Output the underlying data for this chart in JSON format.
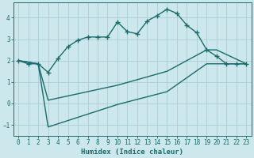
{
  "xlabel": "Humidex (Indice chaleur)",
  "bg_color": "#cde8ec",
  "grid_color": "#aacdd4",
  "line_color": "#1a6b6b",
  "xlim": [
    -0.5,
    23.5
  ],
  "ylim": [
    -1.5,
    4.7
  ],
  "yticks": [
    -1,
    0,
    1,
    2,
    3,
    4
  ],
  "xticks": [
    0,
    1,
    2,
    3,
    4,
    5,
    6,
    7,
    8,
    9,
    10,
    11,
    12,
    13,
    14,
    15,
    16,
    17,
    18,
    19,
    20,
    21,
    22,
    23
  ],
  "line1_x": [
    0,
    1,
    2,
    3,
    4,
    5,
    6,
    7,
    8,
    9,
    10,
    11,
    12,
    13,
    14,
    15,
    16,
    17,
    18,
    19,
    20,
    21,
    22,
    23
  ],
  "line1_y": [
    2.0,
    1.85,
    1.85,
    1.45,
    2.1,
    2.65,
    2.95,
    3.1,
    3.1,
    3.1,
    3.8,
    3.35,
    3.25,
    3.85,
    4.1,
    4.4,
    4.2,
    3.65,
    3.3,
    2.5,
    2.2,
    1.85,
    1.85,
    1.85
  ],
  "line2_x": [
    0,
    2,
    3,
    10,
    15,
    19,
    20,
    23
  ],
  "line2_y": [
    2.0,
    1.85,
    0.15,
    0.85,
    1.5,
    2.5,
    2.5,
    1.85
  ],
  "line3_x": [
    0,
    2,
    3,
    10,
    15,
    19,
    20,
    23
  ],
  "line3_y": [
    2.0,
    1.85,
    -1.1,
    -0.05,
    0.55,
    1.85,
    1.85,
    1.85
  ]
}
